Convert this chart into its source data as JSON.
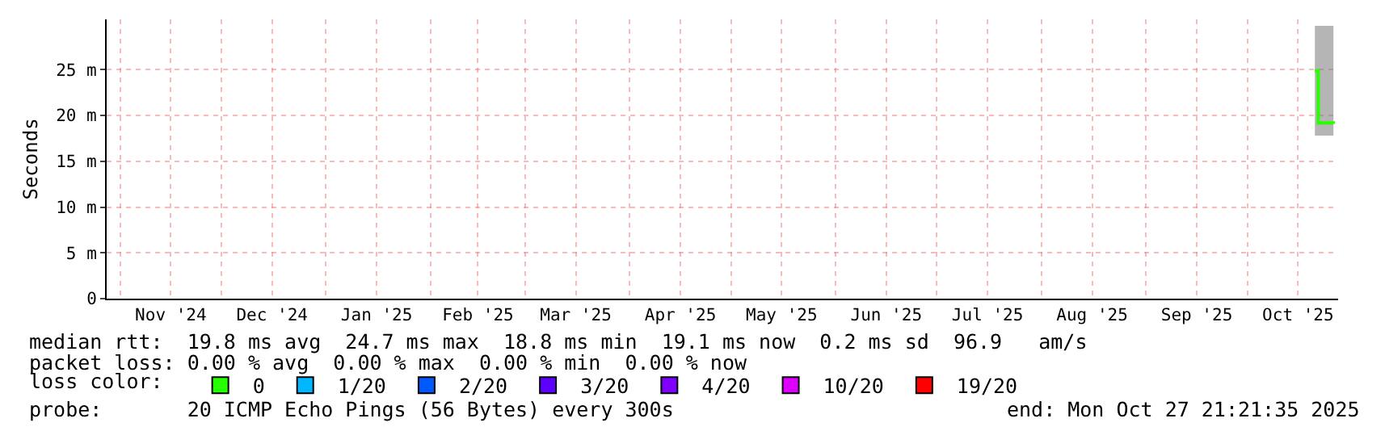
{
  "chart_data": {
    "type": "line",
    "ylabel": "Seconds",
    "xlim": [
      "2024-10-28",
      "2025-10-27T21:21"
    ],
    "xticks": [
      {
        "value": "2024-11-01",
        "label": null
      },
      {
        "value": "2024-11-16",
        "label": "Nov '24"
      },
      {
        "value": "2024-12-01",
        "label": null
      },
      {
        "value": "2024-12-16",
        "label": "Dec '24"
      },
      {
        "value": "2025-01-01",
        "label": null
      },
      {
        "value": "2025-01-16",
        "label": "Jan '25"
      },
      {
        "value": "2025-02-01",
        "label": null
      },
      {
        "value": "2025-02-15",
        "label": "Feb '25"
      },
      {
        "value": "2025-03-01",
        "label": null
      },
      {
        "value": "2025-03-16",
        "label": "Mar '25"
      },
      {
        "value": "2025-04-01",
        "label": null
      },
      {
        "value": "2025-04-16",
        "label": "Apr '25"
      },
      {
        "value": "2025-05-01",
        "label": null
      },
      {
        "value": "2025-05-16",
        "label": "May '25"
      },
      {
        "value": "2025-06-01",
        "label": null
      },
      {
        "value": "2025-06-16",
        "label": "Jun '25"
      },
      {
        "value": "2025-07-01",
        "label": null
      },
      {
        "value": "2025-07-16",
        "label": "Jul '25"
      },
      {
        "value": "2025-08-01",
        "label": null
      },
      {
        "value": "2025-08-16",
        "label": "Aug '25"
      },
      {
        "value": "2025-09-01",
        "label": null
      },
      {
        "value": "2025-09-16",
        "label": "Sep '25"
      },
      {
        "value": "2025-10-01",
        "label": null
      },
      {
        "value": "2025-10-16",
        "label": "Oct '25"
      }
    ],
    "ylim": [
      0,
      30.5
    ],
    "yticks": [
      {
        "value": 0,
        "label": "0"
      },
      {
        "value": 5,
        "label": "5 m"
      },
      {
        "value": 10,
        "label": "10 m"
      },
      {
        "value": 15,
        "label": "15 m"
      },
      {
        "value": 20,
        "label": "20 m"
      },
      {
        "value": 25,
        "label": "25 m"
      }
    ],
    "grid": true,
    "legend": "bottom",
    "legend_title": "loss color:",
    "line_style": "solid",
    "series": [
      {
        "name": "0",
        "color": "#26ff00",
        "x": [
          "2025-10-21T00:00",
          "2025-10-21T18:00",
          "2025-10-22T00:00",
          "2025-10-26T12:00"
        ],
        "values": [
          24.9,
          24.8,
          19.2,
          19.1
        ],
        "lower": [
          17.8,
          17.8,
          17.8,
          17.8
        ],
        "upper": [
          29.8,
          29.8,
          29.8,
          29.8
        ]
      },
      {
        "name": "1/20",
        "color": "#00b8ff"
      },
      {
        "name": "2/20",
        "color": "#0059ff"
      },
      {
        "name": "3/20",
        "color": "#5e00ff"
      },
      {
        "name": "4/20",
        "color": "#7e00ff"
      },
      {
        "name": "10/20",
        "color": "#dd00ff"
      },
      {
        "name": "19/20",
        "color": "#ff0000"
      }
    ],
    "annotations": [
      "median rtt:  19.8 ms avg  24.7 ms max  18.8 ms min  19.1 ms now  0.2 ms sd  96.9   am/s",
      "packet loss: 0.00 % avg  0.00 % max  0.00 % min  0.00 % now",
      "probe:       20 ICMP Echo Pings (56 Bytes) every 300s",
      "end: Mon Oct 27 21:21:35 2025"
    ]
  }
}
